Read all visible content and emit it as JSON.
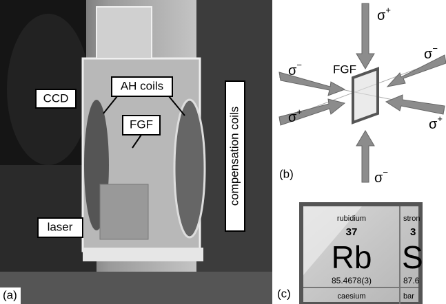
{
  "panel_a": {
    "tag": "(a)",
    "labels": {
      "ccd": "CCD",
      "ah_coils": "AH coils",
      "fgf": "FGF",
      "laser": "laser",
      "compensation": "compensation coils"
    }
  },
  "panel_b": {
    "tag": "(b)",
    "center": "FGF",
    "beams": [
      {
        "symbol": "σ",
        "sign": "+"
      },
      {
        "symbol": "σ",
        "sign": "−"
      },
      {
        "symbol": "σ",
        "sign": "−"
      },
      {
        "symbol": "σ",
        "sign": "+"
      },
      {
        "symbol": "σ",
        "sign": "+"
      },
      {
        "symbol": "σ",
        "sign": "−"
      }
    ]
  },
  "panel_c": {
    "tag": "(c)",
    "element": {
      "name": "rubidium",
      "number": "37",
      "symbol": "Rb",
      "mass": "85.4678(3)"
    },
    "neighbor": {
      "name": "stron",
      "number": "3",
      "symbol": "S",
      "mass": "87.6"
    },
    "below": {
      "name": "caesium",
      "name2": "bar"
    }
  }
}
